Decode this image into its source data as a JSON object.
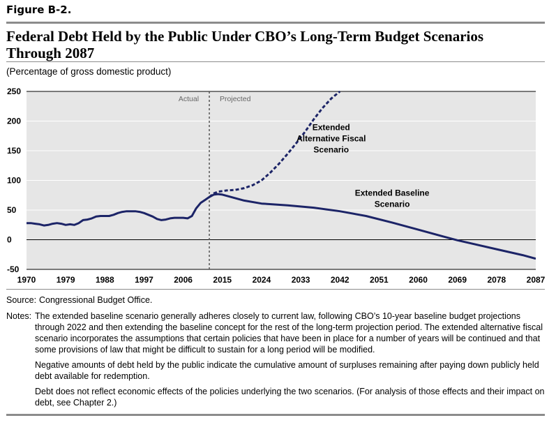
{
  "figure_label": "Figure B-2.",
  "title_line1": "Federal Debt Held by the Public Under CBO’s Long-Term Budget Scenarios",
  "title_line2": "Through 2087",
  "subtitle": "(Percentage of gross domestic product)",
  "source": {
    "label": "Source:",
    "text": "Congressional Budget Office."
  },
  "notes": {
    "label": "Notes:",
    "paragraphs": [
      "The extended baseline scenario generally adheres closely to current law, following CBO’s 10-year baseline budget projections through 2022 and then extending the baseline concept for the rest of the long-term projection period. The extended alternative fiscal scenario incorporates the assumptions that certain policies that have been in place for a number of years will be continued and that some provisions of law that might be difficult to sustain for a long period will be modified.",
      "Negative amounts of debt held by the public indicate the cumulative amount of surpluses remaining after paying down publicly held debt available for redemption.",
      "Debt does not reflect economic effects of the policies underlying the two scenarios. (For analysis of those effects and their impact on debt, see Chapter 2.)"
    ]
  },
  "chart_data": {
    "type": "line",
    "xlim": [
      1970,
      2087
    ],
    "ylim": [
      -50,
      250
    ],
    "xticks": [
      1970,
      1979,
      1988,
      1997,
      2006,
      2015,
      2024,
      2033,
      2042,
      2051,
      2060,
      2069,
      2078,
      2087
    ],
    "yticks": [
      -50,
      0,
      50,
      100,
      150,
      200,
      250
    ],
    "grid": true,
    "zero_line": true,
    "divider_year": 2012,
    "actual_label": "Actual",
    "projected_label": "Projected",
    "colors": {
      "line": "#1c2467",
      "plot_bg": "#e6e6e6",
      "grid": "#ffffff",
      "divider": "#555555"
    },
    "series": [
      {
        "name": "Actual",
        "style": "solid",
        "x": [
          1970,
          1971,
          1972,
          1973,
          1974,
          1975,
          1976,
          1977,
          1978,
          1979,
          1980,
          1981,
          1982,
          1983,
          1984,
          1985,
          1986,
          1987,
          1988,
          1989,
          1990,
          1991,
          1992,
          1993,
          1994,
          1995,
          1996,
          1997,
          1998,
          1999,
          2000,
          2001,
          2002,
          2003,
          2004,
          2005,
          2006,
          2007,
          2008,
          2009,
          2010,
          2011,
          2012
        ],
        "y": [
          28,
          28,
          27,
          26,
          24,
          25,
          27,
          28,
          27,
          25,
          26,
          25,
          28,
          33,
          34,
          36,
          39,
          40,
          40,
          40,
          42,
          45,
          47,
          48,
          48,
          48,
          47,
          45,
          42,
          39,
          35,
          33,
          34,
          36,
          37,
          37,
          37,
          36,
          40,
          53,
          62,
          67,
          72
        ]
      },
      {
        "name": "Extended Baseline Scenario",
        "style": "solid",
        "x": [
          2012,
          2013,
          2014,
          2015,
          2017,
          2020,
          2024,
          2030,
          2036,
          2042,
          2048,
          2054,
          2060,
          2066,
          2069,
          2072,
          2078,
          2084,
          2087
        ],
        "y": [
          72,
          76,
          77,
          76,
          72,
          66,
          61,
          58,
          54,
          48,
          40,
          29,
          17,
          5,
          -1,
          -6,
          -16,
          -26,
          -32
        ]
      },
      {
        "name": "Extended Alternative Fiscal Scenario",
        "style": "dashed",
        "x": [
          2012,
          2013,
          2014,
          2016,
          2018,
          2020,
          2022,
          2024,
          2026,
          2028,
          2030,
          2032,
          2034,
          2036,
          2038,
          2040,
          2042
        ],
        "y": [
          72,
          78,
          81,
          83,
          84,
          87,
          92,
          100,
          113,
          128,
          145,
          163,
          182,
          203,
          222,
          238,
          250
        ]
      }
    ],
    "annotations": [
      {
        "lines": [
          "Extended",
          "Alternative Fiscal",
          "Scenario"
        ],
        "x": 2040,
        "y": 185
      },
      {
        "lines": [
          "Extended Baseline",
          "Scenario"
        ],
        "x": 2054,
        "y": 74
      }
    ]
  }
}
